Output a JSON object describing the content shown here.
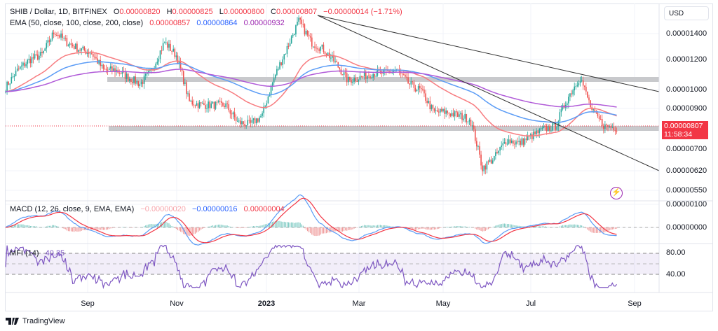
{
  "header": {
    "symbol": "SHIB / Dollar, 1D, BITFINEX",
    "open_label": "O",
    "open": "0.00000820",
    "high_label": "H",
    "high": "0.00000825",
    "low_label": "L",
    "low": "0.00000800",
    "close_label": "C",
    "close": "0.00000807",
    "change": "−0.00000014 (−1.71%)"
  },
  "ema": {
    "label": "EMA (50, close, 100, close, 200, close)",
    "ema50": "0.00000857",
    "ema100": "0.00000864",
    "ema200": "0.00000932"
  },
  "macd": {
    "label": "MACD (12, 26, close, 9, EMA, EMA)",
    "hist": "−0.00000020",
    "macd": "−0.00000016",
    "signal": "0.00000004"
  },
  "mfi": {
    "label": "MFI (14)",
    "value": "40.35"
  },
  "currency": "USD",
  "price_axis": [
    "0.00001400",
    "0.00001200",
    "0.00001000",
    "0.00000900",
    "0.00000700",
    "0.00000620",
    "0.00000550"
  ],
  "macd_axis": [
    "0.00000100",
    "0.00000000"
  ],
  "mfi_axis": [
    "80.00",
    "40.00"
  ],
  "last_price": {
    "value": "0.00000807",
    "countdown": "11:58:34"
  },
  "dates": [
    "Sep",
    "Nov",
    "2023",
    "Mar",
    "May",
    "Jul",
    "Sep"
  ],
  "brand": "TradingView",
  "colors": {
    "up": "#26a69a",
    "down": "#ef5350",
    "ema50": "#f77c80",
    "ema100": "#5b9cf6",
    "ema200": "#b05ad8",
    "mfi": "#7e57c2"
  },
  "price_path": [
    10.16,
    11.27,
    12.0,
    12.35,
    14.18,
    13.3,
    12.77,
    12.5,
    11.27,
    11.27,
    10.8,
    10.37,
    11.27,
    13.3,
    12.25,
    9.34,
    9.15,
    9.15,
    9.15,
    8.25,
    8.15,
    8.6,
    10.8,
    12.77,
    15.1,
    13.3,
    12.77,
    11.75,
    10.58,
    10.8,
    11.05,
    11.05,
    11.27,
    10.37,
    9.96,
    8.78,
    8.78,
    8.6,
    8.42,
    6.28,
    6.69,
    7.44,
    7.28,
    7.59,
    7.91,
    8.07,
    9.55,
    10.8,
    8.78,
    8.07,
    8.01
  ]
}
